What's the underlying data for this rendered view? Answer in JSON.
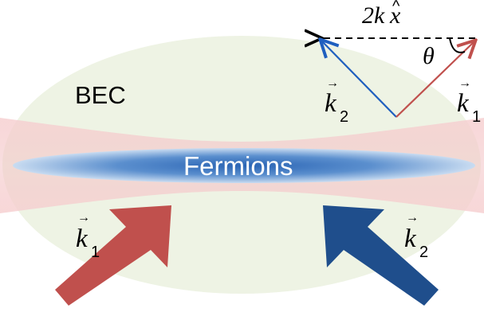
{
  "labels": {
    "bec": "BEC",
    "fermions": "Fermions",
    "two_k_x": "2k",
    "x_hat_base": "x",
    "hat": "^",
    "theta": "θ"
  },
  "vectors": {
    "k_letter": "k",
    "arrow_symbol": "→",
    "sub_1": "1",
    "sub_2": "2"
  },
  "colors": {
    "bec_cloud": "#eef3e4",
    "beam": "#f3c7c9",
    "fermions_inner": "#2f68b8",
    "fermions_outer": "#c8dcf0",
    "k1_arrow": "#c0504d",
    "k2_arrow": "#1f4e8c",
    "k1_line": "#c0504d",
    "k2_line": "#1f5fbf"
  },
  "icons": {
    "k1_beam": "wide-arrow-up-right",
    "k2_beam": "wide-arrow-up-left",
    "difference": "dashed-arrow-left"
  }
}
